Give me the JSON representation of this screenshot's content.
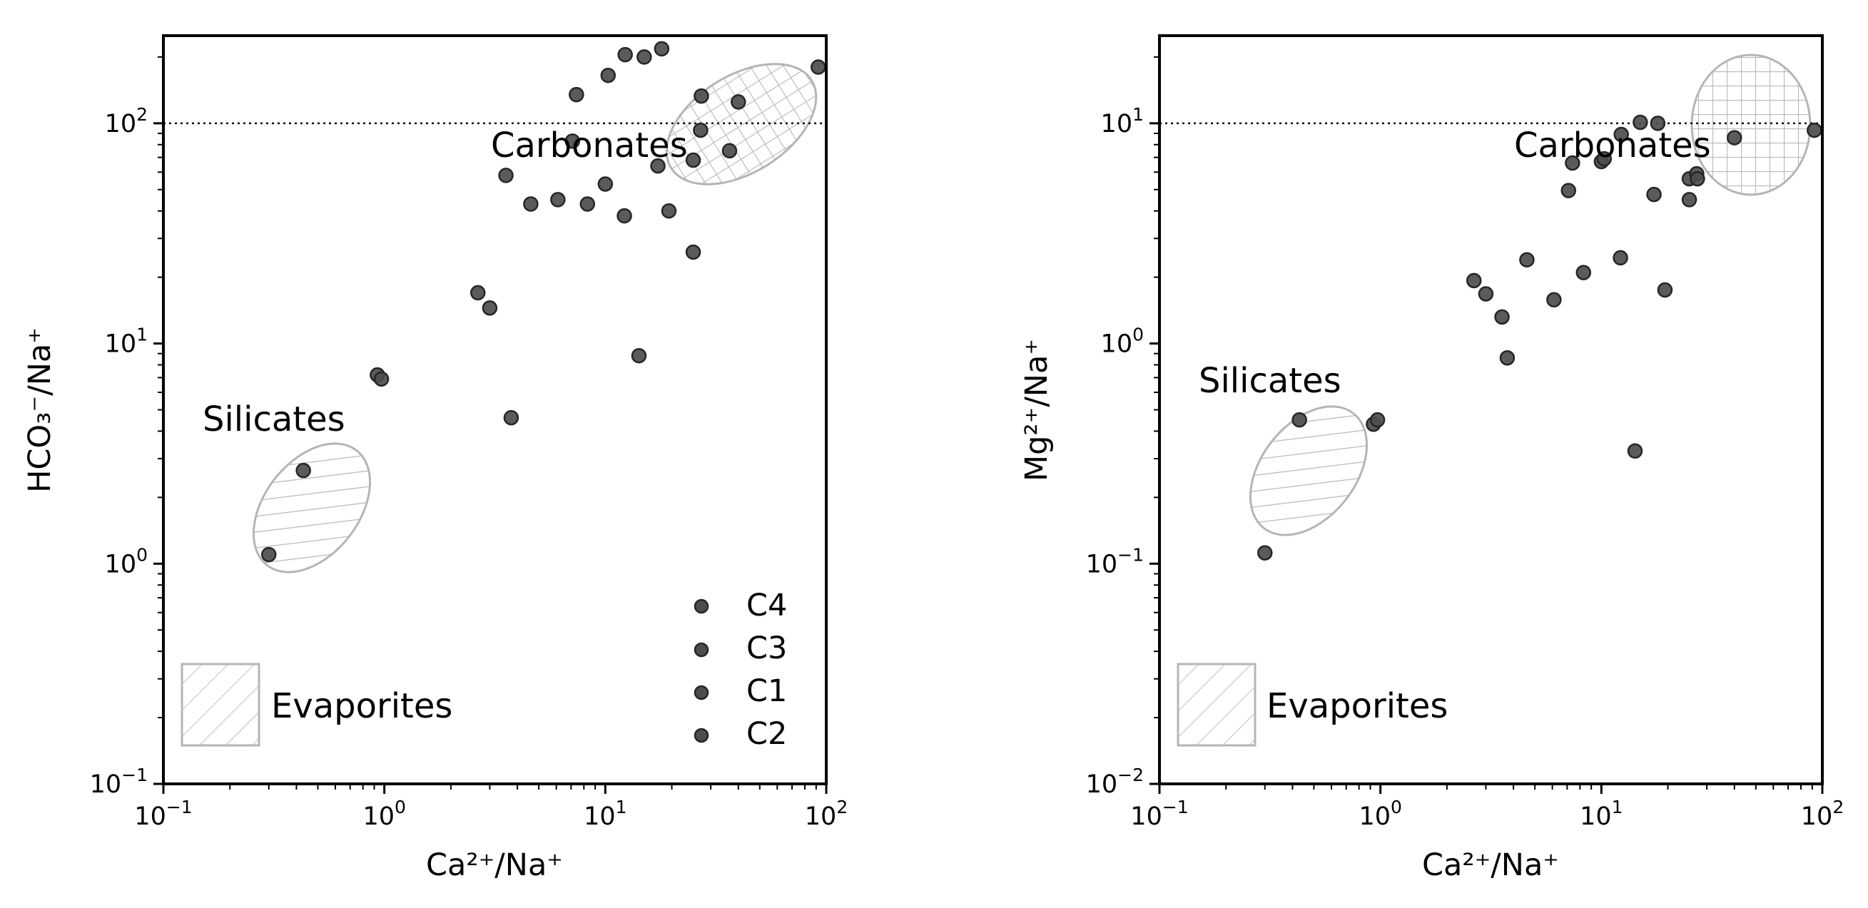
{
  "chart_data": [
    {
      "type": "scatter",
      "xscale": "log",
      "yscale": "log",
      "xlim": [
        0.1,
        100
      ],
      "ylim": [
        0.1,
        250
      ],
      "xlabel": "Ca²⁺/Na⁺",
      "ylabel": "HCO₃⁻/Na⁺",
      "x_ticks": [
        {
          "base": "10",
          "exp": "−1"
        },
        {
          "base": "10",
          "exp": "0"
        },
        {
          "base": "10",
          "exp": "1"
        },
        {
          "base": "10",
          "exp": "2"
        }
      ],
      "y_ticks": [
        {
          "base": "10",
          "exp": "−1"
        },
        {
          "base": "10",
          "exp": "0"
        },
        {
          "base": "10",
          "exp": "1"
        },
        {
          "base": "10",
          "exp": "2"
        }
      ],
      "ref_line_y": 100,
      "marker_color": "#4d4d4d",
      "regions": [
        {
          "label": "Silicates",
          "fill": "hatch-diagonal",
          "cx": 0.5,
          "cy": 2.3
        },
        {
          "label": "Carbonates",
          "fill": "hatch-grid",
          "cx": 45,
          "cy": 110
        },
        {
          "label": "Evaporites",
          "fill": "hatch-diagonal"
        }
      ],
      "legend": {
        "placement": "lower-right",
        "entries": [
          "C4",
          "C3",
          "C1",
          "C2"
        ]
      },
      "points": [
        [
          0.3,
          1.1
        ],
        [
          0.43,
          2.65
        ],
        [
          0.93,
          7.2
        ],
        [
          0.97,
          6.9
        ],
        [
          2.65,
          17
        ],
        [
          3.0,
          14.5
        ],
        [
          3.55,
          58
        ],
        [
          3.75,
          4.6
        ],
        [
          4.6,
          43
        ],
        [
          6.1,
          45
        ],
        [
          7.1,
          83
        ],
        [
          7.4,
          135
        ],
        [
          8.3,
          43
        ],
        [
          10.0,
          53
        ],
        [
          10.3,
          165
        ],
        [
          12.2,
          38
        ],
        [
          12.3,
          205
        ],
        [
          14.2,
          8.8
        ],
        [
          15.0,
          200
        ],
        [
          17.3,
          64
        ],
        [
          18.0,
          218
        ],
        [
          19.4,
          40
        ],
        [
          25.0,
          26
        ],
        [
          25.0,
          68
        ],
        [
          27.0,
          93
        ],
        [
          27.2,
          133
        ],
        [
          36.5,
          75
        ],
        [
          40.0,
          125
        ],
        [
          92.0,
          180
        ]
      ]
    },
    {
      "type": "scatter",
      "xscale": "log",
      "yscale": "log",
      "xlim": [
        0.1,
        100
      ],
      "ylim": [
        0.01,
        25
      ],
      "xlabel": "Ca²⁺/Na⁺",
      "ylabel": "Mg²⁺/Na⁺",
      "x_ticks": [
        {
          "base": "10",
          "exp": "−1"
        },
        {
          "base": "10",
          "exp": "0"
        },
        {
          "base": "10",
          "exp": "1"
        },
        {
          "base": "10",
          "exp": "2"
        }
      ],
      "y_ticks": [
        {
          "base": "10",
          "exp": "−2"
        },
        {
          "base": "10",
          "exp": "−1"
        },
        {
          "base": "10",
          "exp": "0"
        },
        {
          "base": "10",
          "exp": "1"
        }
      ],
      "ref_line_y": 10,
      "marker_color": "#4d4d4d",
      "regions": [
        {
          "label": "Silicates",
          "fill": "hatch-diagonal",
          "cx": 0.4,
          "cy": 0.26
        },
        {
          "label": "Carbonates",
          "fill": "hatch-grid",
          "cx": 50,
          "cy": 9.5
        },
        {
          "label": "Evaporites",
          "fill": "hatch-diagonal"
        }
      ],
      "points": [
        [
          0.3,
          0.112
        ],
        [
          0.43,
          0.45
        ],
        [
          0.93,
          0.43
        ],
        [
          0.97,
          0.45
        ],
        [
          2.65,
          1.93
        ],
        [
          3.0,
          1.68
        ],
        [
          3.55,
          1.32
        ],
        [
          3.75,
          0.86
        ],
        [
          4.6,
          2.4
        ],
        [
          6.1,
          1.58
        ],
        [
          7.1,
          4.95
        ],
        [
          7.4,
          6.6
        ],
        [
          8.3,
          2.1
        ],
        [
          10.0,
          6.7
        ],
        [
          10.3,
          6.9
        ],
        [
          12.2,
          2.45
        ],
        [
          12.3,
          8.9
        ],
        [
          14.2,
          0.325
        ],
        [
          15.0,
          10.1
        ],
        [
          17.3,
          4.75
        ],
        [
          18.0,
          10.0
        ],
        [
          19.4,
          1.75
        ],
        [
          25.0,
          5.6
        ],
        [
          25.0,
          4.5
        ],
        [
          27.0,
          5.9
        ],
        [
          27.2,
          5.6
        ],
        [
          40.0,
          8.6
        ],
        [
          92.0,
          9.3
        ]
      ]
    }
  ]
}
